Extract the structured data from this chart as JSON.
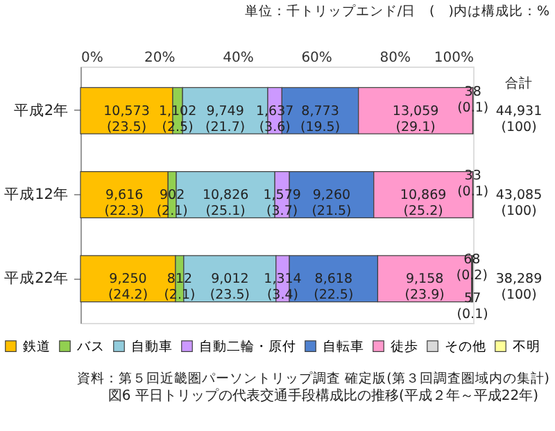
{
  "chart_data": {
    "type": "bar",
    "orientation": "horizontal",
    "stacked": true,
    "title": "図6 平日トリップの代表交通手段構成比の推移(平成２年～平成22年)",
    "categories": [
      "平成2年",
      "平成12年",
      "平成22年"
    ],
    "series": [
      {
        "name": "鉄道",
        "color": "#ffc000",
        "values": [
          23.5,
          22.3,
          24.2
        ],
        "value_labels": [
          "10,573\n(23.5)",
          "9,616\n(22.3)",
          "9,250\n(24.2)"
        ]
      },
      {
        "name": "バス",
        "color": "#92d050",
        "values": [
          2.5,
          2.1,
          2.1
        ],
        "value_labels": [
          "1,102\n(2.5)",
          "902\n(2.1)",
          "812\n(2.1)"
        ]
      },
      {
        "name": "自動車",
        "color": "#93cddd",
        "values": [
          21.7,
          25.1,
          23.5
        ],
        "value_labels": [
          "9,749\n(21.7)",
          "10,826\n(25.1)",
          "9,012\n(23.5)"
        ]
      },
      {
        "name": "自動二輪・原付",
        "color": "#cc99ff",
        "values": [
          3.6,
          3.7,
          3.4
        ],
        "value_labels": [
          "1,637\n(3.6)",
          "1,579\n(3.7)",
          "1,314\n(3.4)"
        ]
      },
      {
        "name": "自転車",
        "color": "#4f81d0",
        "values": [
          19.5,
          21.5,
          22.5
        ],
        "value_labels": [
          "8,773\n(19.5)",
          "9,260\n(21.5)",
          "8,618\n(22.5)"
        ]
      },
      {
        "name": "徒歩",
        "color": "#ff99cc",
        "values": [
          29.1,
          25.2,
          23.9
        ],
        "value_labels": [
          "13,059\n(29.1)",
          "10,869\n(25.2)",
          "9,158\n(23.9)"
        ]
      },
      {
        "name": "その他",
        "color": "#d9d9d9",
        "values": [
          0.1,
          0.1,
          0.2
        ],
        "value_labels": [
          "38\n(0.1)",
          "33\n(0.1)",
          "68\n(0.2)"
        ]
      },
      {
        "name": "不明",
        "color": "#ffff99",
        "values": [
          null,
          null,
          0.1
        ],
        "value_labels": [
          null,
          null,
          "57\n(0.1)"
        ]
      }
    ],
    "totals": [
      "44,931\n(100)",
      "43,085\n(100)",
      "38,289\n(100)"
    ],
    "xlim": [
      0,
      100
    ],
    "xticks": [
      {
        "value": 0,
        "label": "0%"
      },
      {
        "value": 20,
        "label": "20%"
      },
      {
        "value": 40,
        "label": "40%"
      },
      {
        "value": 60,
        "label": "60%"
      },
      {
        "value": 80,
        "label": "80%"
      },
      {
        "value": 100,
        "label": "100%"
      }
    ],
    "annotations": [
      "単位：千トリップエンド/日　(　)内は構成比：%",
      "合計",
      "資料：第５回近畿圏パーソントリップ調査 確定版(第３回調査圏域内の集計)"
    ],
    "legend": "bottom",
    "grid": false
  }
}
